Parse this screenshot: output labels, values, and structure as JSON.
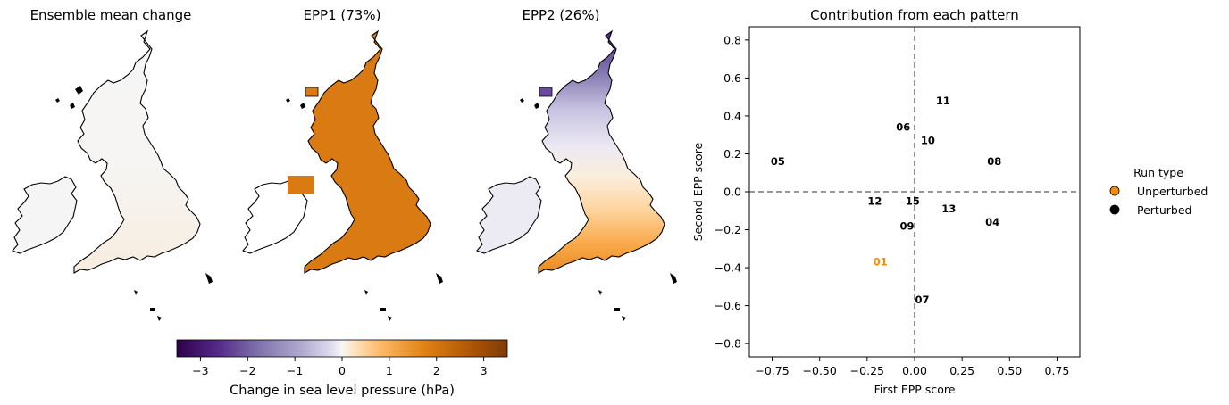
{
  "maps": [
    {
      "title": "Ensemble mean change",
      "fill": "mean"
    },
    {
      "title": "EPP1 (73%)",
      "fill": "epp1"
    },
    {
      "title": "EPP2 (26%)",
      "fill": "epp2"
    }
  ],
  "colorbar": {
    "label": "Change in sea level pressure (hPa)",
    "range": [
      -3.5,
      3.5
    ],
    "ticks": [
      -3,
      -2,
      -1,
      0,
      1,
      2,
      3
    ],
    "tick_labels": [
      "−3",
      "−2",
      "−1",
      "0",
      "1",
      "2",
      "3"
    ],
    "colormap": "PuOr_r",
    "colors": {
      "low": "#2d004b",
      "mid_low": "#b2abd2",
      "zero": "#f7f7f7",
      "mid_high": "#fdb863",
      "high": "#7f3b08",
      "epp1_fill": "#d97a12"
    }
  },
  "chart_data": {
    "type": "scatter",
    "title": "Contribution from each pattern",
    "xlabel": "First EPP score",
    "ylabel": "Second EPP score",
    "xlim": [
      -0.87,
      0.87
    ],
    "ylim": [
      -0.87,
      0.87
    ],
    "xticks": [
      -0.75,
      -0.5,
      -0.25,
      0.0,
      0.25,
      0.5,
      0.75
    ],
    "xtick_labels": [
      "−0.75",
      "−0.50",
      "−0.25",
      "0.00",
      "0.25",
      "0.50",
      "0.75"
    ],
    "yticks": [
      -0.8,
      -0.6,
      -0.4,
      -0.2,
      0.0,
      0.2,
      0.4,
      0.6,
      0.8
    ],
    "ytick_labels": [
      "−0.8",
      "−0.6",
      "−0.4",
      "−0.2",
      "0.0",
      "0.2",
      "0.4",
      "0.6",
      "0.8"
    ],
    "reference_lines": {
      "x": 0,
      "y": 0,
      "style": "dashed",
      "color": "#777777"
    },
    "points": [
      {
        "label": "01",
        "x": -0.18,
        "y": -0.37,
        "type": "Unperturbed"
      },
      {
        "label": "04",
        "x": 0.41,
        "y": -0.16,
        "type": "Perturbed"
      },
      {
        "label": "05",
        "x": -0.72,
        "y": 0.16,
        "type": "Perturbed"
      },
      {
        "label": "06",
        "x": -0.06,
        "y": 0.34,
        "type": "Perturbed"
      },
      {
        "label": "07",
        "x": 0.04,
        "y": -0.57,
        "type": "Perturbed"
      },
      {
        "label": "08",
        "x": 0.42,
        "y": 0.16,
        "type": "Perturbed"
      },
      {
        "label": "09",
        "x": -0.04,
        "y": -0.18,
        "type": "Perturbed"
      },
      {
        "label": "10",
        "x": 0.07,
        "y": 0.27,
        "type": "Perturbed"
      },
      {
        "label": "11",
        "x": 0.15,
        "y": 0.48,
        "type": "Perturbed"
      },
      {
        "label": "12",
        "x": -0.21,
        "y": -0.05,
        "type": "Perturbed"
      },
      {
        "label": "13",
        "x": 0.18,
        "y": -0.09,
        "type": "Perturbed"
      },
      {
        "label": "15",
        "x": -0.01,
        "y": -0.05,
        "type": "Perturbed"
      }
    ],
    "legend": {
      "title": "Run type",
      "placement": "right",
      "entries": [
        {
          "name": "Unperturbed",
          "color": "#ff8c00"
        },
        {
          "name": "Perturbed",
          "color": "#000000"
        }
      ]
    }
  }
}
